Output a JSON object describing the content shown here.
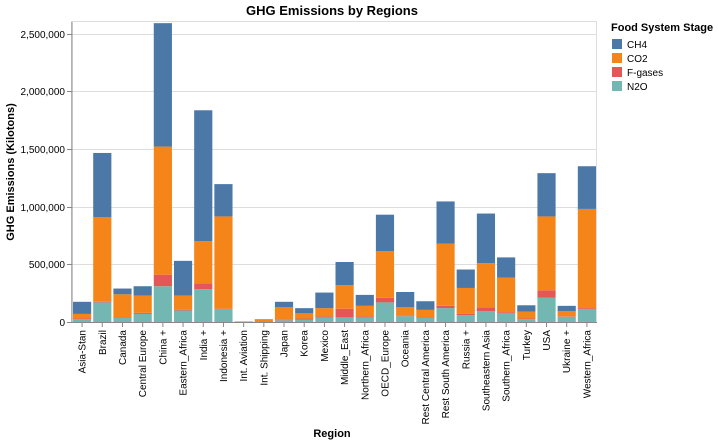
{
  "chart_data": {
    "type": "bar",
    "stacked": true,
    "title": "GHG Emissions by Regions",
    "xlabel": "Region",
    "ylabel": "GHG Emissions (Kilotons)",
    "ylim": [
      0,
      2600000
    ],
    "yticks": [
      0,
      500000,
      1000000,
      1500000,
      2000000,
      2500000
    ],
    "ytick_labels": [
      "0",
      "500,000",
      "1,000,000",
      "1,500,000",
      "2,000,000",
      "2,500,000"
    ],
    "grid": true,
    "legend": {
      "title": "Food System Stage",
      "placement": "top-right"
    },
    "categories": [
      "Asia-Stan",
      "Brazil",
      "Canada",
      "Central Europe",
      "China +",
      "Eastern_Africa",
      "India +",
      "Indonesia +",
      "Int. Aviation",
      "Int. Shipping",
      "Japan",
      "Korea",
      "Mexico",
      "Middle_East",
      "Northern_Africa",
      "OECD_Europe",
      "Oceania",
      "Rest Central America",
      "Rest South America",
      "Russia +",
      "Southeastern Asia",
      "Southern_Africa",
      "Turkey",
      "USA",
      "Ukraine +",
      "Western_Africa"
    ],
    "series": [
      {
        "name": "N2O",
        "color": "#72b7b2",
        "values": [
          25000,
          170000,
          35000,
          70000,
          310000,
          100000,
          285000,
          110000,
          0,
          0,
          15000,
          20000,
          40000,
          40000,
          40000,
          170000,
          50000,
          35000,
          120000,
          60000,
          95000,
          75000,
          25000,
          210000,
          45000,
          110000
        ]
      },
      {
        "name": "F-gases",
        "color": "#e45756",
        "values": [
          5000,
          5000,
          5000,
          10000,
          100000,
          5000,
          50000,
          5000,
          0,
          0,
          5000,
          10000,
          10000,
          75000,
          10000,
          40000,
          5000,
          5000,
          20000,
          10000,
          30000,
          10000,
          5000,
          65000,
          5000,
          10000
        ]
      },
      {
        "name": "CO2",
        "color": "#f58518",
        "values": [
          40000,
          735000,
          200000,
          150000,
          1110000,
          125000,
          365000,
          800000,
          5000,
          25000,
          110000,
          45000,
          70000,
          205000,
          90000,
          405000,
          75000,
          65000,
          540000,
          225000,
          385000,
          300000,
          60000,
          640000,
          45000,
          860000
        ]
      },
      {
        "name": "CH4",
        "color": "#4c78a8",
        "values": [
          105000,
          555000,
          50000,
          80000,
          1070000,
          300000,
          1135000,
          280000,
          0,
          0,
          45000,
          45000,
          135000,
          200000,
          95000,
          315000,
          130000,
          75000,
          365000,
          160000,
          430000,
          175000,
          55000,
          375000,
          45000,
          370000
        ]
      }
    ]
  }
}
